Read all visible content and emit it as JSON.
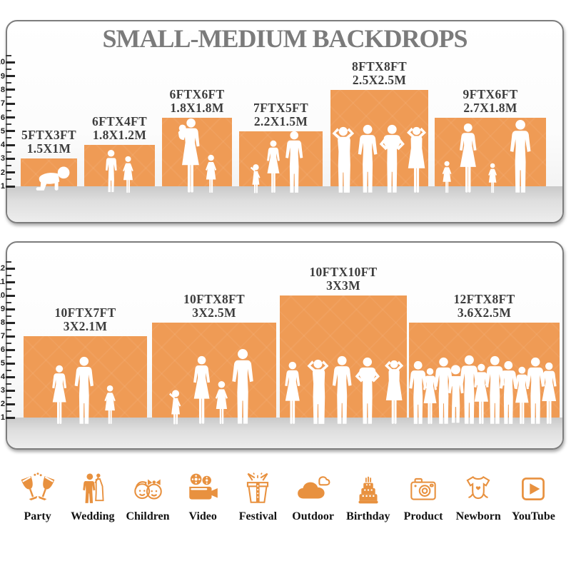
{
  "title": "SMALL-MEDIUM BACKDROPS",
  "accent_color": "#EF9B55",
  "icon_color": "#E8913F",
  "panels": [
    {
      "name": "small-medium-sizes",
      "ruler_max": 10,
      "backdrops": [
        {
          "size_ft": "5FTX3FT",
          "size_m": "1.5X1M",
          "width_ft": 5,
          "height_ft": 3,
          "figures": "crawling-baby"
        },
        {
          "size_ft": "6FTX4FT",
          "size_m": "1.8X1.2M",
          "width_ft": 6,
          "height_ft": 4,
          "figures": "boy-and-girl"
        },
        {
          "size_ft": "6FTX6FT",
          "size_m": "1.8X1.8M",
          "width_ft": 6,
          "height_ft": 6,
          "figures": "mother-holding-baby-and-girl"
        },
        {
          "size_ft": "7FTX5FT",
          "size_m": "2.2X1.5M",
          "width_ft": 7,
          "height_ft": 5,
          "figures": "family-of-three"
        },
        {
          "size_ft": "8FTX8FT",
          "size_m": "2.5X2.5M",
          "width_ft": 8,
          "height_ft": 8,
          "figures": "four-adults-posing"
        },
        {
          "size_ft": "9FTX6FT",
          "size_m": "2.7X1.8M",
          "width_ft": 9,
          "height_ft": 6,
          "figures": "family-of-four"
        }
      ]
    },
    {
      "name": "large-sizes",
      "ruler_max": 12,
      "backdrops": [
        {
          "size_ft": "10FTX7FT",
          "size_m": "3X2.1M",
          "width_ft": 10,
          "height_ft": 7,
          "figures": "family-of-three"
        },
        {
          "size_ft": "10FTX8FT",
          "size_m": "3X2.5M",
          "width_ft": 10,
          "height_ft": 8,
          "figures": "family-of-four-walking"
        },
        {
          "size_ft": "10FTX10FT",
          "size_m": "3X3M",
          "width_ft": 10,
          "height_ft": 10,
          "figures": "five-adults-posing"
        },
        {
          "size_ft": "12FTX8FT",
          "size_m": "3.6X2.5M",
          "width_ft": 12,
          "height_ft": 8,
          "figures": "group-of-people"
        }
      ]
    }
  ],
  "categories": [
    {
      "label": "Party",
      "icon": "party-glasses-icon"
    },
    {
      "label": "Wedding",
      "icon": "wedding-couple-icon"
    },
    {
      "label": "Children",
      "icon": "children-faces-icon"
    },
    {
      "label": "Video",
      "icon": "video-camera-icon"
    },
    {
      "label": "Festival",
      "icon": "gift-box-icon"
    },
    {
      "label": "Outdoor",
      "icon": "cloud-icon"
    },
    {
      "label": "Birthday",
      "icon": "birthday-cake-icon"
    },
    {
      "label": "Product",
      "icon": "photo-camera-icon"
    },
    {
      "label": "Newborn",
      "icon": "baby-onesie-icon"
    },
    {
      "label": "YouTube",
      "icon": "youtube-play-icon"
    }
  ],
  "chart_data": [
    {
      "type": "bar",
      "title": "SMALL-MEDIUM BACKDROPS",
      "categories": [
        "5FTX3FT",
        "6FTX4FT",
        "6FTX6FT",
        "7FTX5FT",
        "8FTX8FT",
        "9FTX6FT"
      ],
      "series": [
        {
          "name": "height_ft",
          "values": [
            3,
            4,
            6,
            5,
            8,
            6
          ]
        },
        {
          "name": "width_ft",
          "values": [
            5,
            6,
            6,
            7,
            8,
            9
          ]
        }
      ],
      "metric_labels": [
        "1.5X1M",
        "1.8X1.2M",
        "1.8X1.8M",
        "2.2X1.5M",
        "2.5X2.5M",
        "2.7X1.8M"
      ],
      "xlabel": "",
      "ylabel": "feet",
      "ylim": [
        0,
        10
      ],
      "grid": false,
      "legend": "none"
    },
    {
      "type": "bar",
      "title": "",
      "categories": [
        "10FTX7FT",
        "10FTX8FT",
        "10FTX10FT",
        "12FTX8FT"
      ],
      "series": [
        {
          "name": "height_ft",
          "values": [
            7,
            8,
            10,
            8
          ]
        },
        {
          "name": "width_ft",
          "values": [
            10,
            10,
            10,
            12
          ]
        }
      ],
      "metric_labels": [
        "3X2.1M",
        "3X2.5M",
        "3X3M",
        "3.6X2.5M"
      ],
      "xlabel": "",
      "ylabel": "feet",
      "ylim": [
        0,
        12
      ],
      "grid": false,
      "legend": "none"
    }
  ]
}
